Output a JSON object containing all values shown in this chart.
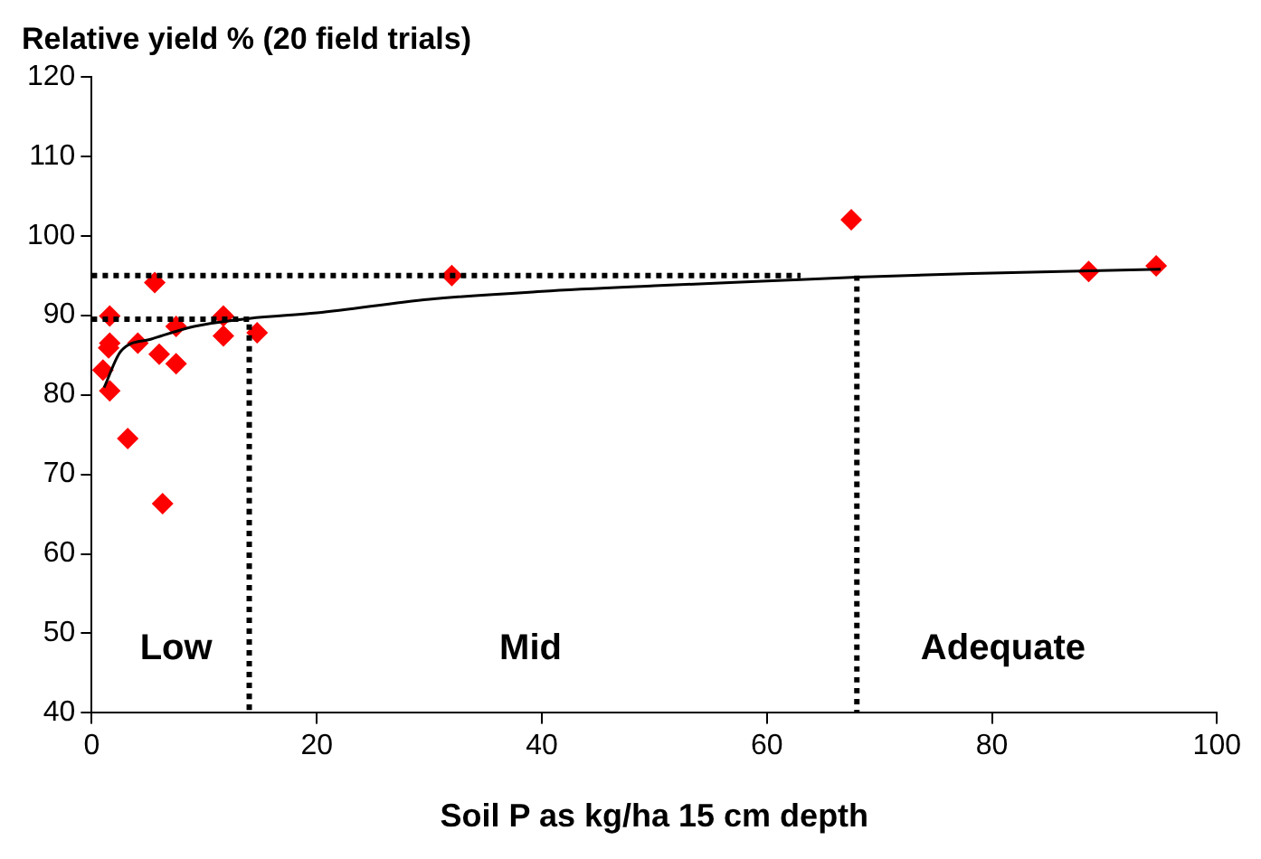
{
  "chart_data": {
    "type": "scatter",
    "title": "Relative yield % (20 field trials)",
    "xlabel": "Soil P as kg/ha 15 cm depth",
    "xlim": [
      0,
      100
    ],
    "xticks": [
      0,
      20,
      40,
      60,
      80,
      100
    ],
    "ylim": [
      40,
      120
    ],
    "yticks": [
      40,
      50,
      60,
      70,
      80,
      90,
      100,
      110,
      120
    ],
    "grid": false,
    "legend": false,
    "series": [
      {
        "color": "#ff0000",
        "marker": "diamond",
        "x": [
          5.6,
          1.6,
          1.6,
          1.5,
          1.0,
          1.6,
          3.2,
          6.3,
          4.1,
          6.0,
          7.5,
          7.5,
          11.7,
          11.7,
          14.7,
          32,
          67.5,
          88.6,
          94.6
        ],
        "values": [
          94.1,
          89.9,
          86.5,
          85.9,
          83.1,
          80.5,
          74.5,
          66.3,
          86.5,
          85.1,
          83.9,
          88.6,
          89.9,
          87.4,
          87.8,
          95,
          102,
          95.5,
          96.2
        ]
      },
      {
        "type": "line",
        "color": "#000000",
        "marker": "none",
        "line_style": "solid",
        "x": [
          1.1,
          2.6,
          5.3,
          9.1,
          14,
          20,
          30,
          40,
          50,
          60,
          68,
          80,
          95
        ],
        "values": [
          80.9,
          85.5,
          87.0,
          88.6,
          89.6,
          90.3,
          92,
          93,
          93.7,
          94.3,
          94.8,
          95.3,
          95.8
        ]
      },
      {
        "type": "line",
        "color": "#000000",
        "marker": "none",
        "line_style": "dotted",
        "x": [
          0,
          14,
          14
        ],
        "values": [
          89.5,
          89.5,
          40
        ]
      },
      {
        "type": "line",
        "color": "#000000",
        "marker": "none",
        "line_style": "dotted",
        "x": [
          0,
          63
        ],
        "values": [
          95,
          95
        ]
      },
      {
        "type": "line",
        "color": "#000000",
        "marker": "none",
        "line_style": "dotted",
        "x": [
          68,
          68
        ],
        "values": [
          95,
          40
        ]
      }
    ],
    "annotations": [
      "Low",
      "Mid",
      "Adequate"
    ]
  }
}
